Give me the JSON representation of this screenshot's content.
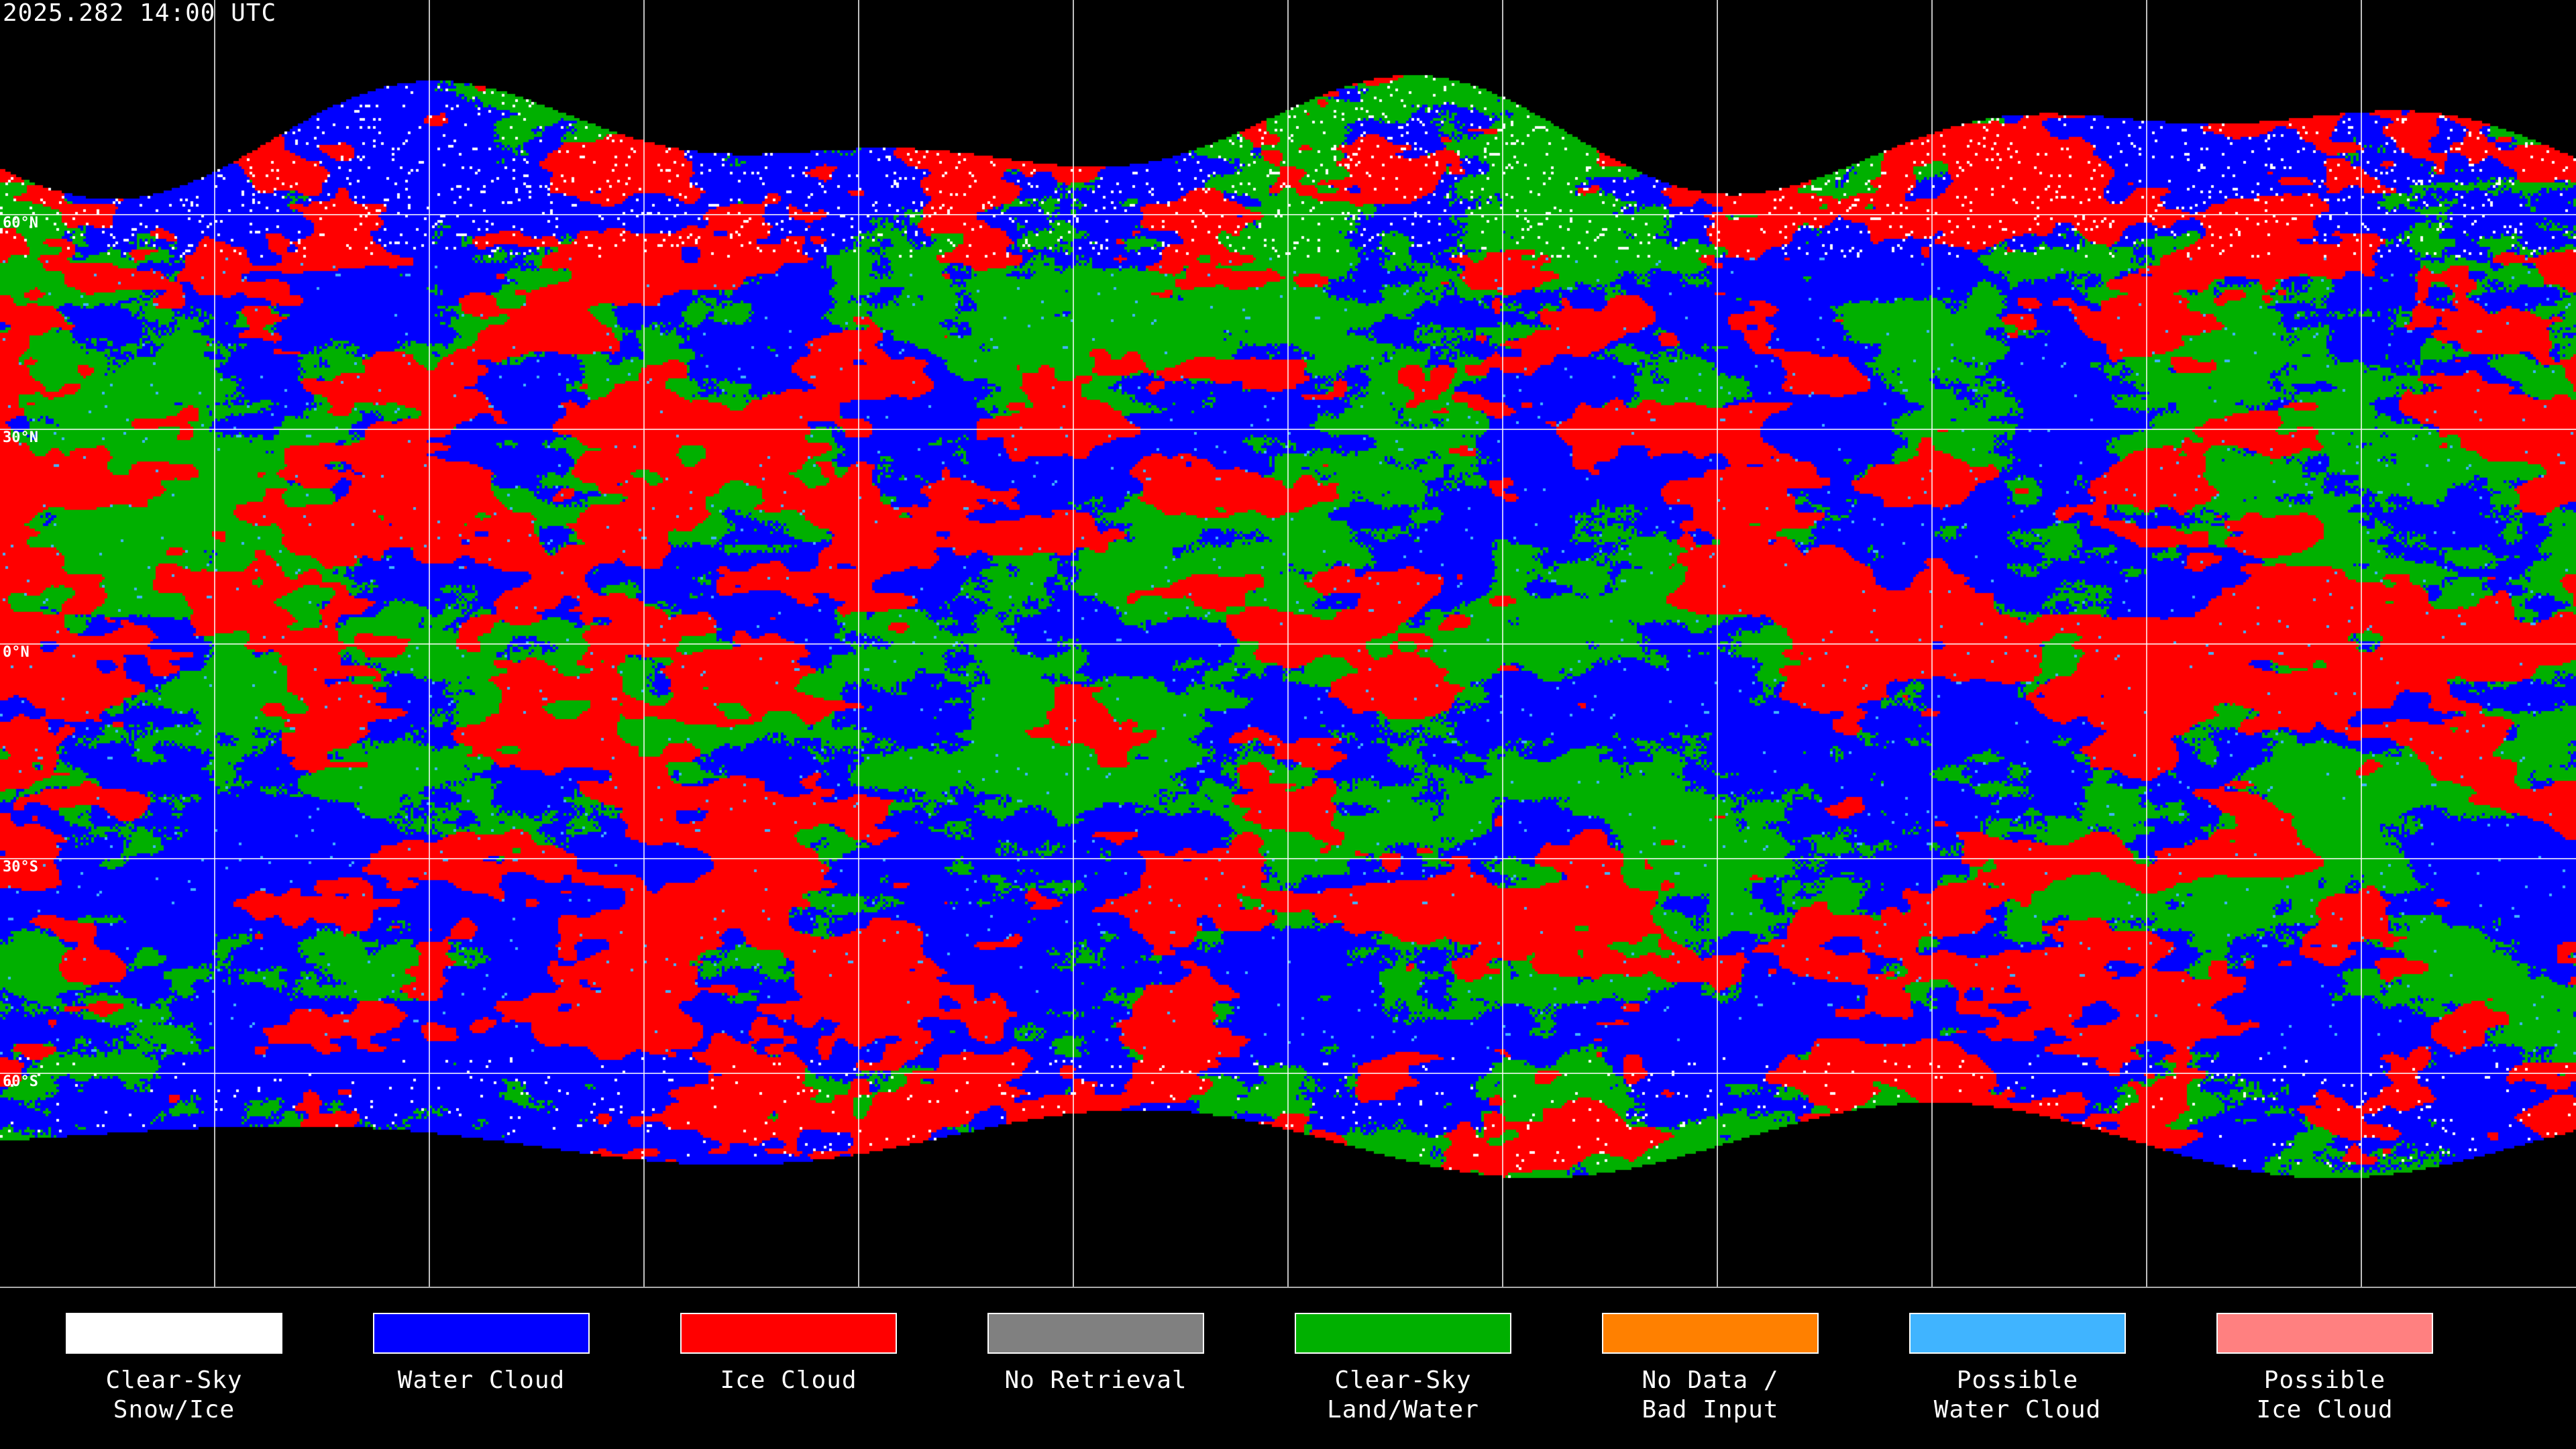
{
  "header": {
    "timestamp": "2025.282 14:00 UTC"
  },
  "map": {
    "projection": "equirectangular",
    "latitude_labels": [
      "60°N",
      "30°N",
      "0°N",
      "30°S",
      "60°S"
    ],
    "graticule_spacing_deg": 30
  },
  "legend": [
    {
      "label": "Clear-Sky\nSnow/Ice",
      "color": "#ffffff"
    },
    {
      "label": "Water Cloud",
      "color": "#0000ff"
    },
    {
      "label": "Ice Cloud",
      "color": "#ff0000"
    },
    {
      "label": "No Retrieval",
      "color": "#808080"
    },
    {
      "label": "Clear-Sky\nLand/Water",
      "color": "#00b000"
    },
    {
      "label": "No Data /\nBad Input",
      "color": "#ff8000"
    },
    {
      "label": "Possible\nWater Cloud",
      "color": "#40b4ff"
    },
    {
      "label": "Possible\nIce Cloud",
      "color": "#ff8080"
    }
  ]
}
